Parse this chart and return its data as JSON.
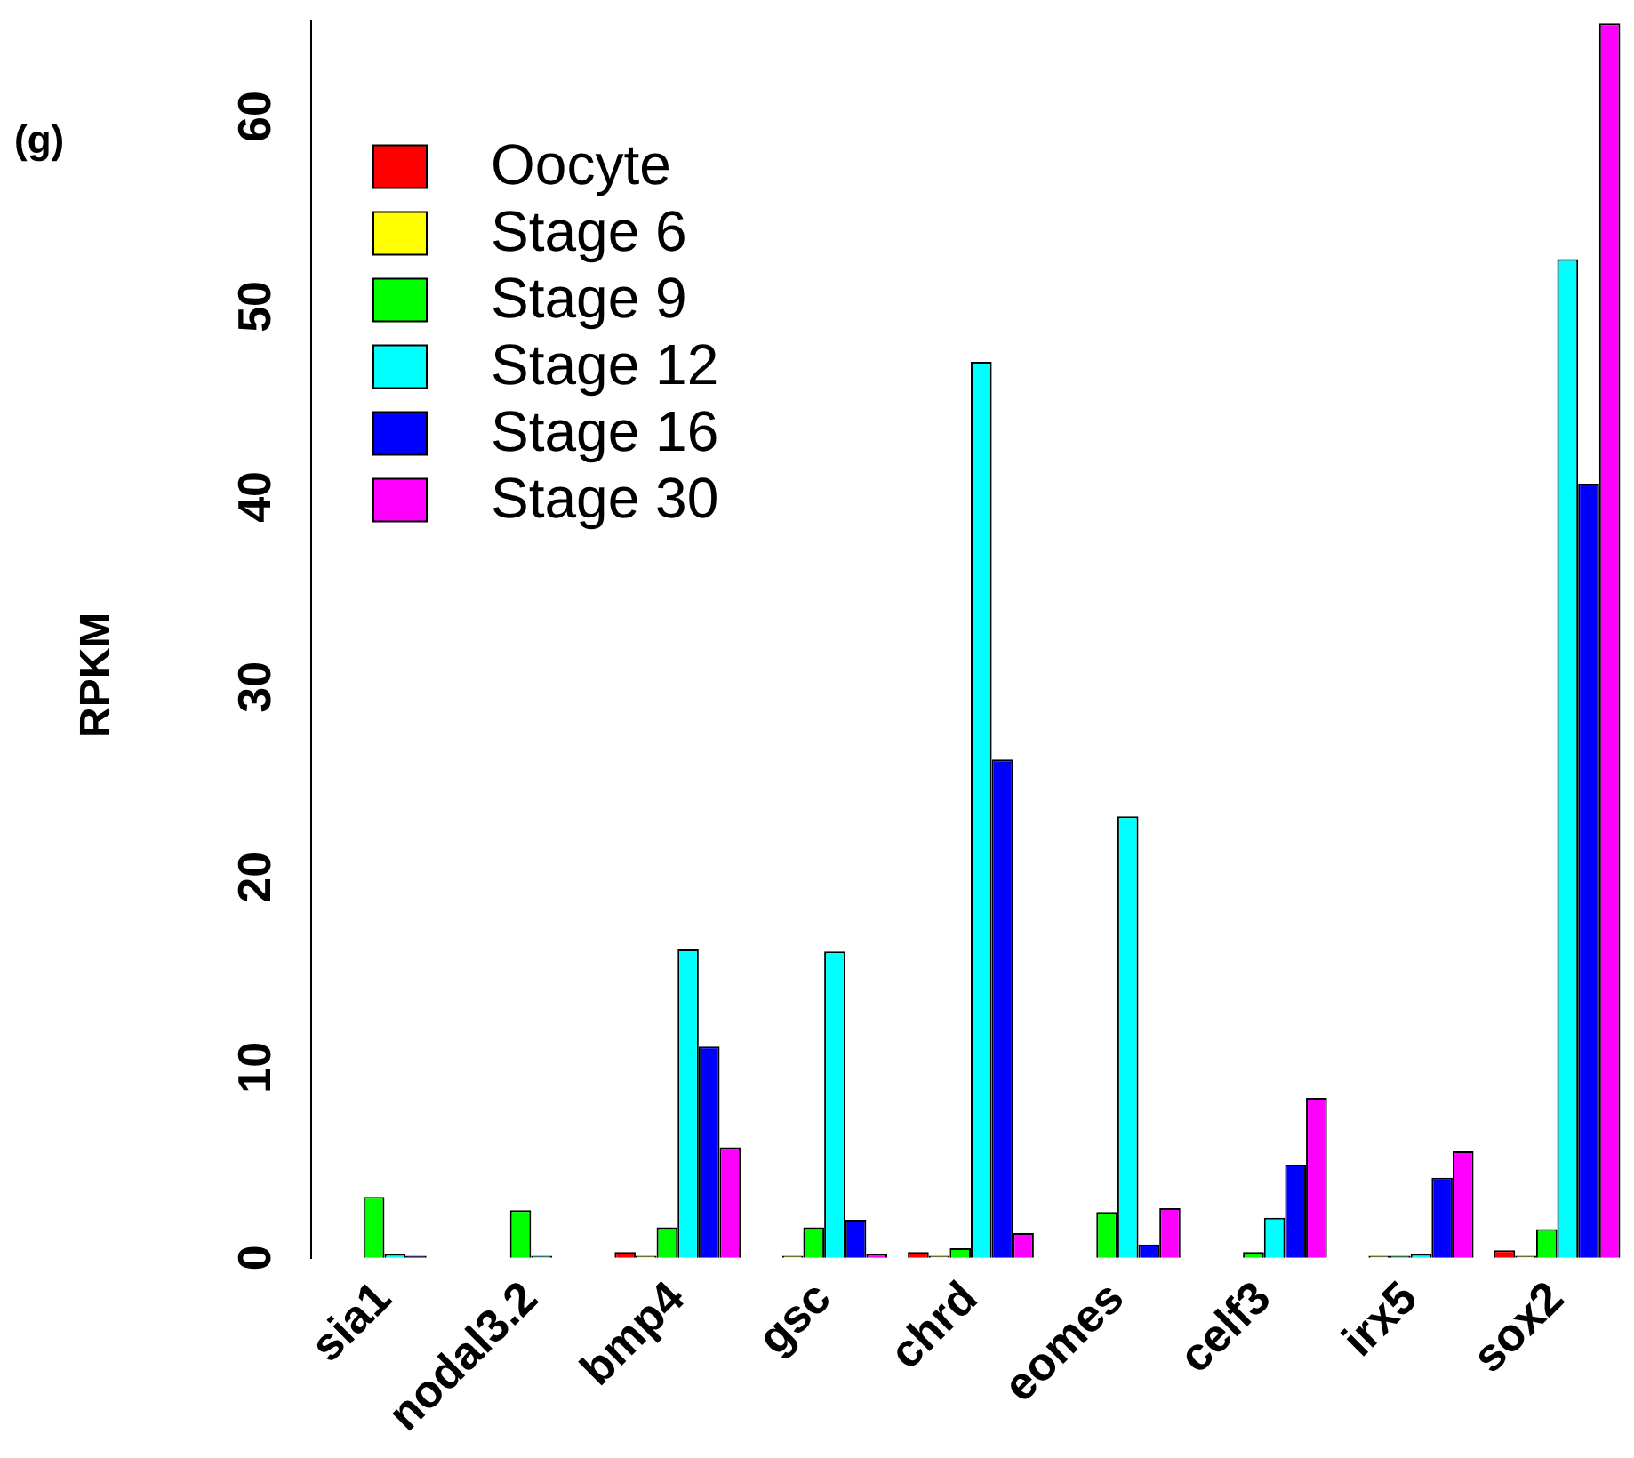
{
  "chart_data": {
    "type": "bar",
    "ylabel": "RPKM",
    "annotations": [
      "(g)"
    ],
    "categories": [
      "sia1",
      "nodal3.2",
      "bmp4",
      "gsc",
      "chrd",
      "eomes",
      "celf3",
      "irx5",
      "sox2"
    ],
    "series": [
      {
        "name": "Oocyte",
        "color": "#ff0000",
        "values": [
          0,
          0,
          0.3,
          0,
          0.3,
          0,
          0,
          0,
          0.4
        ]
      },
      {
        "name": "Stage 6",
        "color": "#ffff00",
        "values": [
          0,
          0,
          0.1,
          0.1,
          0.1,
          0,
          0,
          0.1,
          0.1
        ]
      },
      {
        "name": "Stage 9",
        "color": "#00ff00",
        "values": [
          3.2,
          2.5,
          1.6,
          1.6,
          0.5,
          2.4,
          0.3,
          0.1,
          1.5
        ]
      },
      {
        "name": "Stage 12",
        "color": "#00ffff",
        "values": [
          0.2,
          0.1,
          16.2,
          16.1,
          47.1,
          23.2,
          2.1,
          0.2,
          52.5
        ]
      },
      {
        "name": "Stage 16",
        "color": "#0000ff",
        "values": [
          0.1,
          0,
          11.1,
          2.0,
          26.2,
          0.7,
          4.9,
          4.2,
          40.7
        ]
      },
      {
        "name": "Stage 30",
        "color": "#ff00ff",
        "values": [
          0,
          0,
          5.8,
          0.2,
          1.3,
          2.6,
          8.4,
          5.6,
          64.9
        ]
      }
    ],
    "ylim": [
      0,
      65
    ],
    "yticks": [
      0,
      10,
      20,
      30,
      40,
      50,
      60
    ],
    "grid": false,
    "legend": "top left"
  }
}
